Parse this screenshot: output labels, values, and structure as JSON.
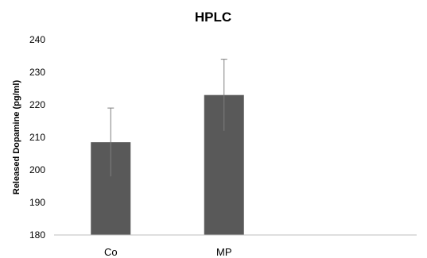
{
  "chart_data": {
    "type": "bar",
    "title": "HPLC",
    "xlabel": "",
    "ylabel": "Released Dopamine (pg/ml)",
    "categories": [
      "Co",
      "MP"
    ],
    "values": [
      208.5,
      223
    ],
    "error": [
      10.5,
      11
    ],
    "ylim": [
      180,
      240
    ],
    "yticks": [
      180,
      190,
      200,
      210,
      220,
      230,
      240
    ],
    "grid": false,
    "legend": "none",
    "colors": {
      "bar": "#595959",
      "axis": "#bfbfbf",
      "error_bar": "#7f7f7f"
    }
  }
}
